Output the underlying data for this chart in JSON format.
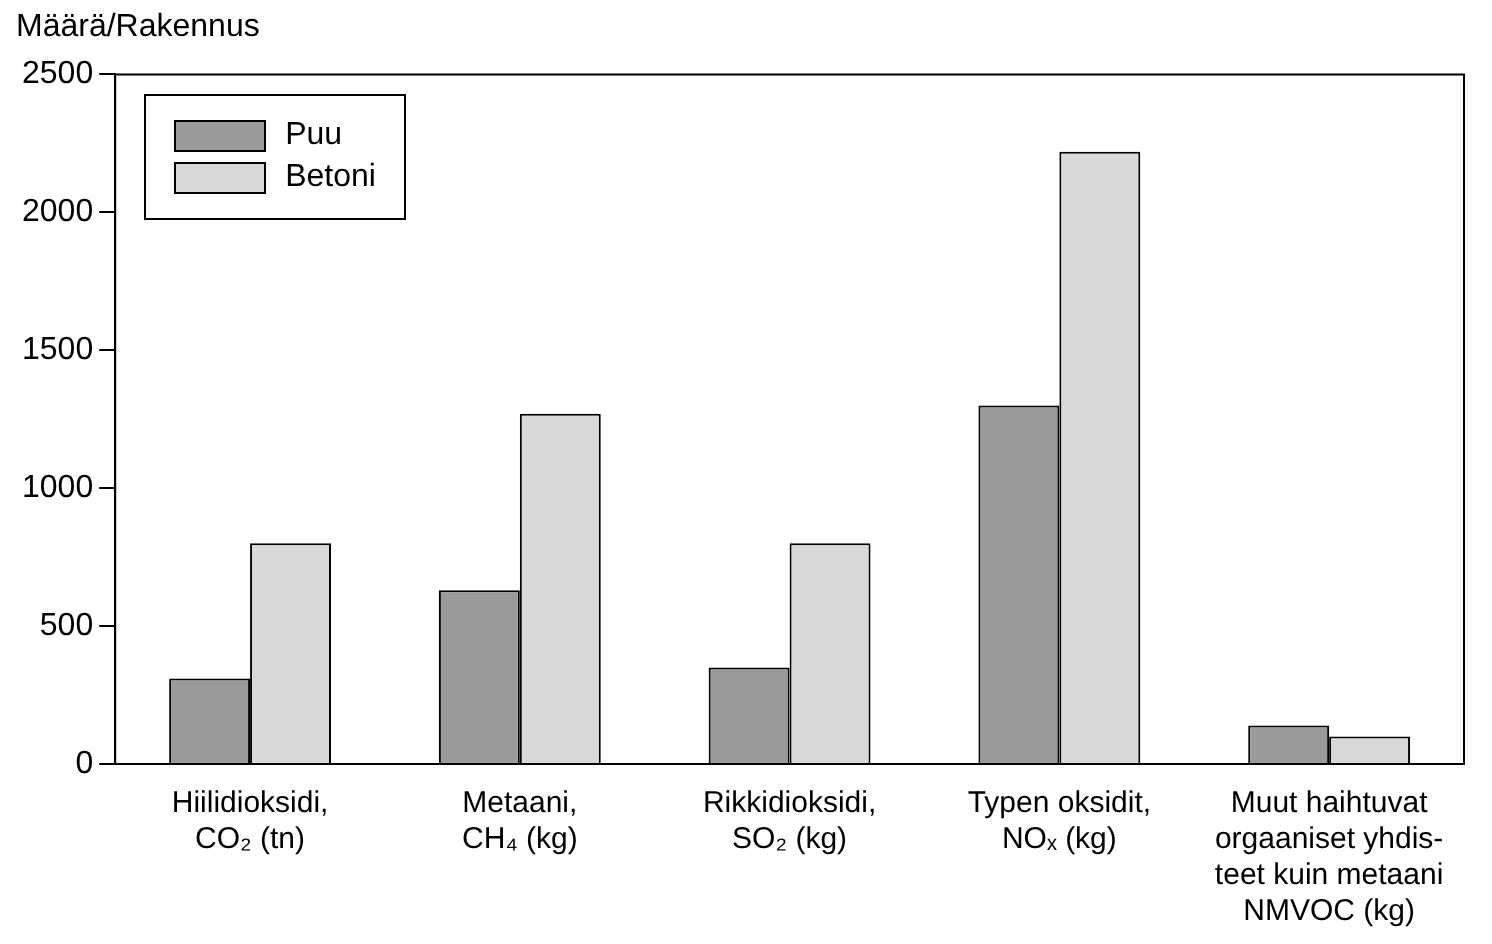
{
  "chart_data": {
    "type": "bar",
    "ylabel": "Määrä/Rakennus",
    "categories": [
      "Hiilidioksidi,\nCO₂ (tn)",
      "Metaani,\nCH₄ (kg)",
      "Rikkidioksidi,\nSO₂ (kg)",
      "Typen oksidit,\nNOₓ (kg)",
      "Muut haihtuvat\norgaaniset yhdis-\nteet kuin metaani\nNMVOC (kg)"
    ],
    "series": [
      {
        "name": "Puu",
        "color": "#9a9a9a",
        "values": [
          310,
          630,
          350,
          1300,
          140
        ]
      },
      {
        "name": "Betoni",
        "color": "#d9d9d9",
        "values": [
          800,
          1270,
          800,
          2220,
          100
        ]
      }
    ],
    "ylim": [
      0,
      2500
    ],
    "yticks": [
      0,
      500,
      1000,
      1500,
      2000,
      2500
    ],
    "grid": false,
    "legend": "top left"
  }
}
